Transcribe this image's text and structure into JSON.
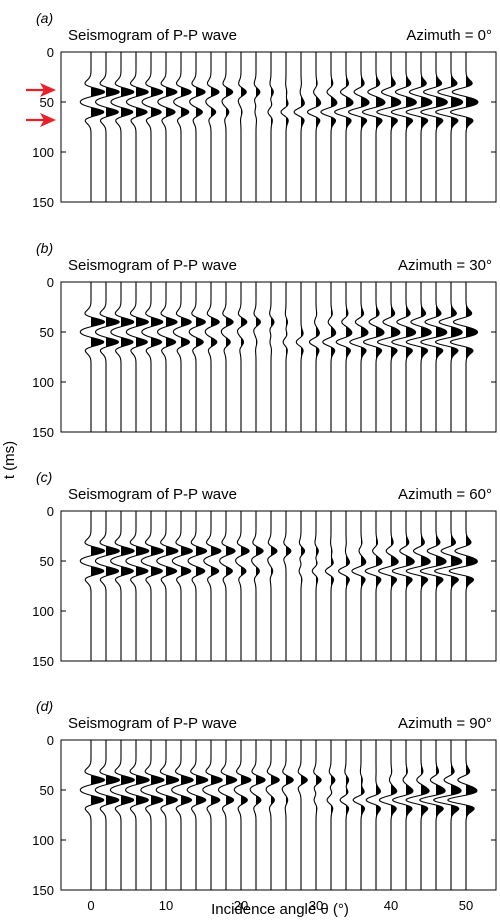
{
  "chart_data": [
    {
      "type": "line",
      "panel_label": "(a)",
      "title": "Seismogram of P-P wave",
      "azimuth_label": "Azimuth = 0°",
      "azimuth_deg": 0,
      "x_ticks": [
        "0",
        "10",
        "20",
        "30",
        "40",
        "50"
      ],
      "y_ticks": [
        "0",
        "50",
        "100",
        "150"
      ],
      "xlim": [
        -4,
        54
      ],
      "ylim": [
        0,
        150
      ],
      "trace_angles": [
        0,
        2,
        4,
        6,
        8,
        10,
        12,
        14,
        16,
        18,
        20,
        22,
        24,
        26,
        28,
        30,
        32,
        34,
        36,
        38,
        40,
        42,
        44,
        46,
        48,
        50
      ],
      "event_times_ms": [
        40,
        60
      ],
      "event_amplitudes": {
        "t40": [
          0.95,
          0.93,
          0.9,
          0.86,
          0.82,
          0.77,
          0.71,
          0.64,
          0.56,
          0.47,
          0.37,
          0.27,
          0.16,
          0.05,
          -0.06,
          -0.17,
          -0.28,
          -0.39,
          -0.49,
          -0.58,
          -0.67,
          -0.75,
          -0.82,
          -0.88,
          -0.93,
          -0.97
        ],
        "t60": [
          0.9,
          0.87,
          0.83,
          0.78,
          0.72,
          0.64,
          0.55,
          0.45,
          0.33,
          0.2,
          0.07,
          -0.07,
          -0.21,
          -0.35,
          -0.48,
          -0.6,
          -0.71,
          -0.8,
          -0.88,
          -0.95,
          -1.0,
          -1.03,
          -1.05,
          -1.07,
          -1.08,
          -1.09
        ]
      },
      "arrows_at_ms": [
        38,
        68
      ]
    },
    {
      "type": "line",
      "panel_label": "(b)",
      "title": "Seismogram of P-P wave",
      "azimuth_label": "Azimuth = 30°",
      "azimuth_deg": 30,
      "x_ticks": [
        "0",
        "10",
        "20",
        "30",
        "40",
        "50"
      ],
      "y_ticks": [
        "0",
        "50",
        "100",
        "150"
      ],
      "xlim": [
        -4,
        54
      ],
      "ylim": [
        0,
        150
      ],
      "trace_angles": [
        0,
        2,
        4,
        6,
        8,
        10,
        12,
        14,
        16,
        18,
        20,
        22,
        24,
        26,
        28,
        30,
        32,
        34,
        36,
        38,
        40,
        42,
        44,
        46,
        48,
        50
      ],
      "event_times_ms": [
        40,
        60
      ],
      "event_amplitudes": {
        "t40": [
          0.95,
          0.93,
          0.9,
          0.87,
          0.83,
          0.78,
          0.72,
          0.66,
          0.58,
          0.5,
          0.41,
          0.31,
          0.21,
          0.1,
          0.0,
          -0.1,
          -0.2,
          -0.3,
          -0.4,
          -0.49,
          -0.57,
          -0.65,
          -0.72,
          -0.78,
          -0.84,
          -0.89
        ],
        "t60": [
          0.9,
          0.88,
          0.85,
          0.8,
          0.75,
          0.68,
          0.6,
          0.51,
          0.41,
          0.3,
          0.18,
          0.06,
          -0.07,
          -0.2,
          -0.33,
          -0.46,
          -0.58,
          -0.69,
          -0.79,
          -0.88,
          -0.95,
          -1.0,
          -1.04,
          -1.07,
          -1.09,
          -1.1
        ]
      }
    },
    {
      "type": "line",
      "panel_label": "(c)",
      "title": "Seismogram of P-P wave",
      "azimuth_label": "Azimuth = 60°",
      "azimuth_deg": 60,
      "x_ticks": [
        "0",
        "10",
        "20",
        "30",
        "40",
        "50"
      ],
      "y_ticks": [
        "0",
        "50",
        "100",
        "150"
      ],
      "xlim": [
        -4,
        54
      ],
      "ylim": [
        0,
        150
      ],
      "trace_angles": [
        0,
        2,
        4,
        6,
        8,
        10,
        12,
        14,
        16,
        18,
        20,
        22,
        24,
        26,
        28,
        30,
        32,
        34,
        36,
        38,
        40,
        42,
        44,
        46,
        48,
        50
      ],
      "event_times_ms": [
        40,
        60
      ],
      "event_amplitudes": {
        "t40": [
          0.95,
          0.94,
          0.92,
          0.9,
          0.87,
          0.84,
          0.8,
          0.75,
          0.7,
          0.64,
          0.57,
          0.5,
          0.42,
          0.34,
          0.25,
          0.16,
          0.06,
          -0.04,
          -0.14,
          -0.24,
          -0.34,
          -0.44,
          -0.53,
          -0.62,
          -0.7,
          -0.78
        ],
        "t60": [
          0.9,
          0.89,
          0.87,
          0.84,
          0.8,
          0.75,
          0.69,
          0.62,
          0.54,
          0.45,
          0.35,
          0.24,
          0.12,
          0.0,
          -0.13,
          -0.26,
          -0.39,
          -0.52,
          -0.64,
          -0.76,
          -0.87,
          -0.96,
          -1.04,
          -1.1,
          -1.15,
          -1.18
        ]
      }
    },
    {
      "type": "line",
      "panel_label": "(d)",
      "title": "Seismogram of P-P wave",
      "azimuth_label": "Azimuth = 90°",
      "azimuth_deg": 90,
      "x_ticks": [
        "0",
        "10",
        "20",
        "30",
        "40",
        "50"
      ],
      "y_ticks": [
        "0",
        "50",
        "100",
        "150"
      ],
      "xlim": [
        -4,
        54
      ],
      "ylim": [
        0,
        150
      ],
      "trace_angles": [
        0,
        2,
        4,
        6,
        8,
        10,
        12,
        14,
        16,
        18,
        20,
        22,
        24,
        26,
        28,
        30,
        32,
        34,
        36,
        38,
        40,
        42,
        44,
        46,
        48,
        50
      ],
      "event_times_ms": [
        40,
        60
      ],
      "event_amplitudes": {
        "t40": [
          0.95,
          0.95,
          0.94,
          0.93,
          0.91,
          0.89,
          0.86,
          0.83,
          0.79,
          0.75,
          0.7,
          0.64,
          0.58,
          0.51,
          0.44,
          0.36,
          0.27,
          0.18,
          0.09,
          -0.01,
          -0.11,
          -0.21,
          -0.3,
          -0.4,
          -0.49,
          -0.58
        ],
        "t60": [
          0.9,
          0.9,
          0.89,
          0.87,
          0.84,
          0.8,
          0.75,
          0.69,
          0.62,
          0.54,
          0.45,
          0.35,
          0.24,
          0.12,
          0.0,
          -0.13,
          -0.27,
          -0.41,
          -0.55,
          -0.69,
          -0.82,
          -0.94,
          -1.05,
          -1.14,
          -1.22,
          -1.28
        ]
      }
    }
  ],
  "shared_axes": {
    "xlabel": "Incidence angle θ (°)",
    "ylabel": "t (ms)"
  },
  "colors": {
    "trace": "#000000",
    "arrow": "#e8202a"
  }
}
